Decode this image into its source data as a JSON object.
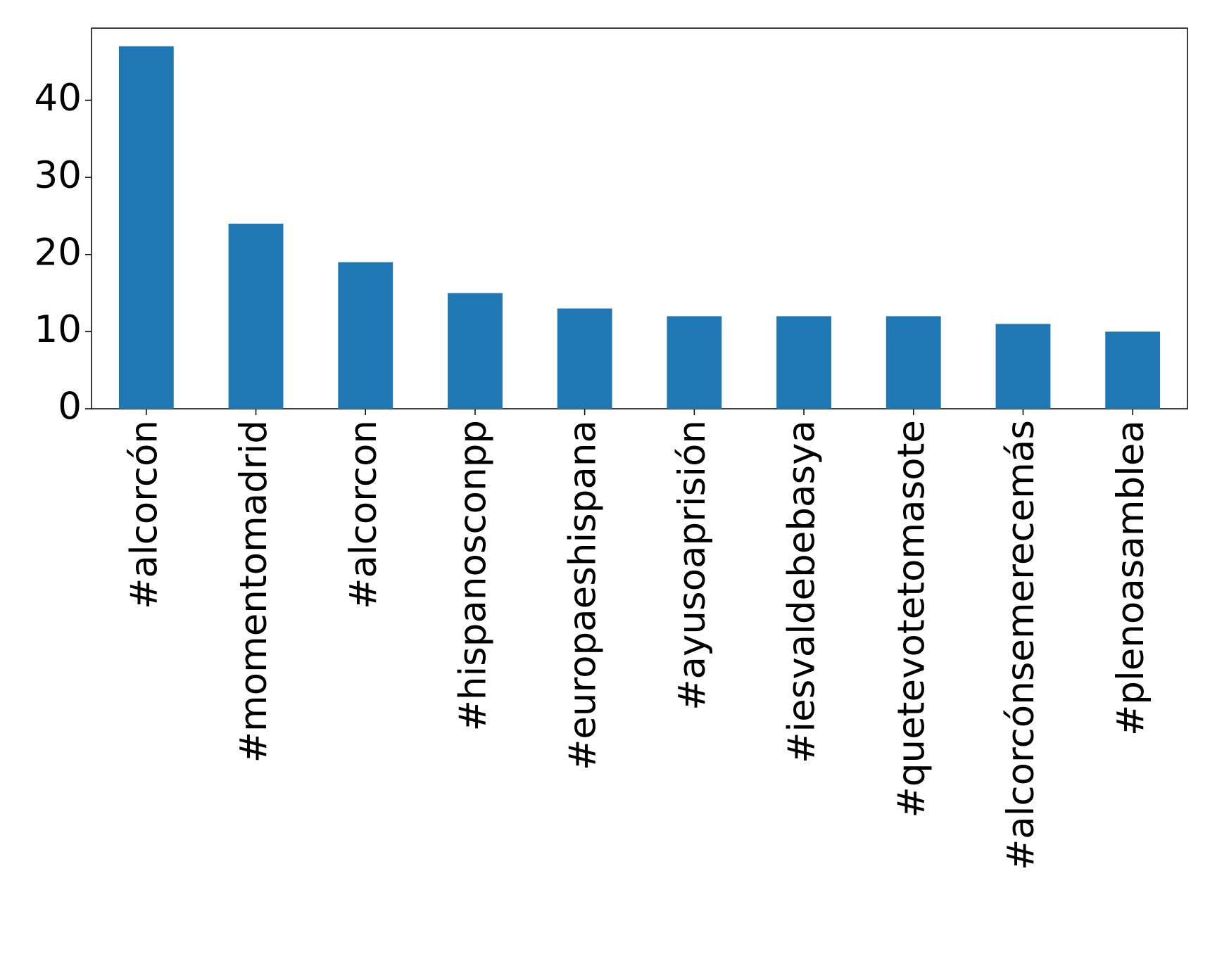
{
  "chart_data": {
    "type": "bar",
    "categories": [
      "#alcorcón",
      "#momentomadrid",
      "#alcorcon",
      "#hispanosconpp",
      "#europaeshispana",
      "#ayusoaprisión",
      "#iesvaldebebasya",
      "#quetevotetomasote",
      "#alcorcónsemerecemás",
      "#plenoasamblea"
    ],
    "values": [
      47,
      24,
      19,
      15,
      13,
      12,
      12,
      12,
      11,
      10
    ],
    "color": "#1f77b4",
    "ylim": [
      0,
      49.35
    ],
    "yticks": [
      0,
      10,
      20,
      30,
      40
    ],
    "grid": false
  }
}
